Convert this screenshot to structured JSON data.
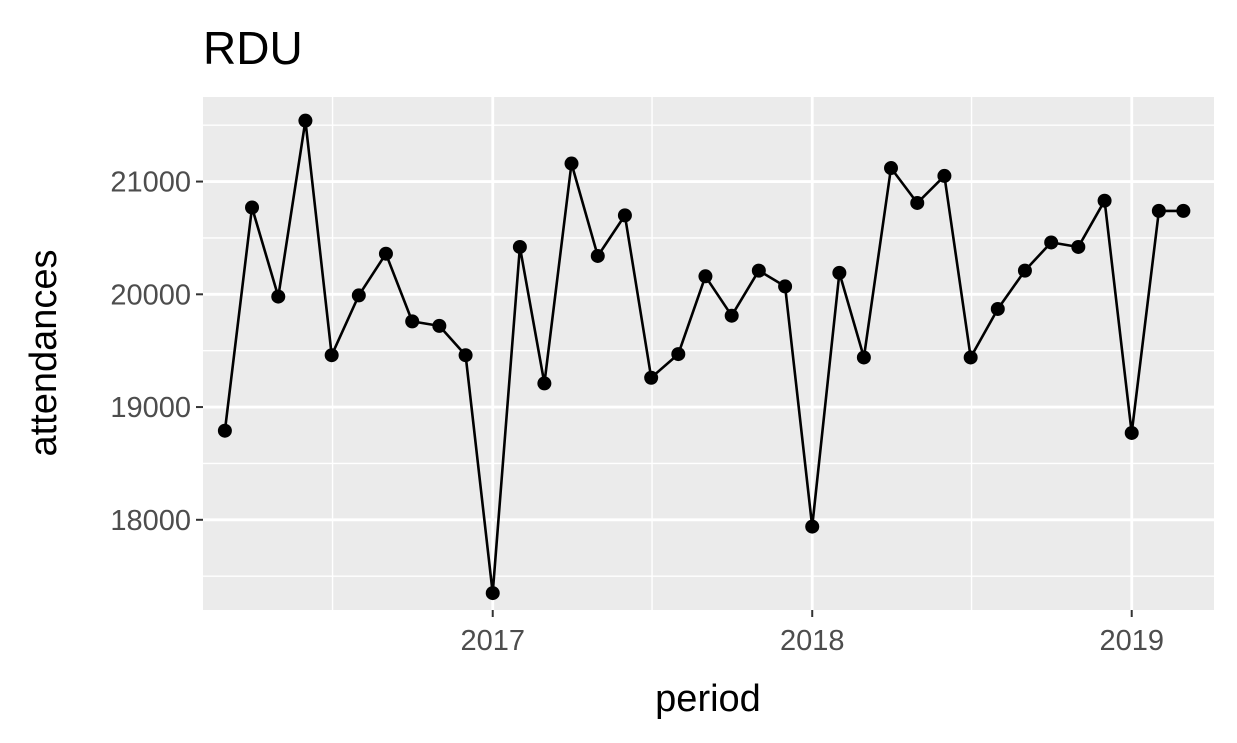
{
  "chart_data": {
    "type": "line",
    "title": "RDU",
    "xlabel": "period",
    "ylabel": "attendances",
    "x_ticks": [
      "2017",
      "2018",
      "2019"
    ],
    "y_ticks": [
      18000,
      19000,
      20000,
      21000
    ],
    "xlim": [
      "2016-02-05",
      "2019-04-05"
    ],
    "ylim": [
      17200,
      21750
    ],
    "grid": true,
    "legend": "none",
    "series_color": "#000000",
    "panel_color": "#ebebeb",
    "grid_color": "#ffffff",
    "series": [
      {
        "x": [
          "2016-03",
          "2016-04",
          "2016-05",
          "2016-06",
          "2016-07",
          "2016-08",
          "2016-09",
          "2016-10",
          "2016-11",
          "2016-12",
          "2017-01",
          "2017-02",
          "2017-03",
          "2017-04",
          "2017-05",
          "2017-06",
          "2017-07",
          "2017-08",
          "2017-09",
          "2017-10",
          "2017-11",
          "2017-12",
          "2018-01",
          "2018-02",
          "2018-03",
          "2018-04",
          "2018-05",
          "2018-06",
          "2018-07",
          "2018-08",
          "2018-09",
          "2018-10",
          "2018-11",
          "2018-12",
          "2019-01",
          "2019-02",
          "2019-03"
        ],
        "values": [
          18790,
          20770,
          19980,
          21540,
          19460,
          19990,
          20360,
          19760,
          19720,
          19460,
          17350,
          20420,
          19210,
          21160,
          20340,
          20700,
          19260,
          19470,
          20160,
          19810,
          20210,
          20070,
          17940,
          20190,
          19440,
          21120,
          20810,
          21050,
          19440,
          19870,
          20210,
          20460,
          20420,
          20830,
          18770,
          20740,
          20740
        ]
      }
    ]
  }
}
